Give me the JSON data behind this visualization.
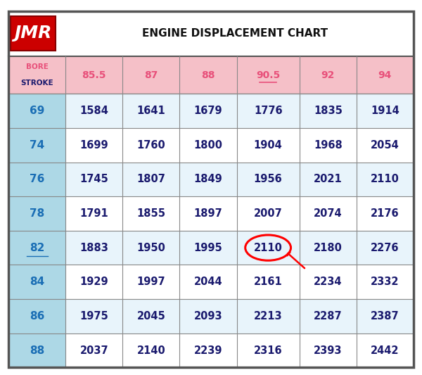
{
  "title": "ENGINE DISPLACEMENT CHART",
  "bore_values": [
    85.5,
    87,
    88,
    90.5,
    92,
    94
  ],
  "stroke_values": [
    69,
    74,
    76,
    78,
    82,
    84,
    86,
    88
  ],
  "table_data": [
    [
      1584,
      1641,
      1679,
      1776,
      1835,
      1914
    ],
    [
      1699,
      1760,
      1800,
      1904,
      1968,
      2054
    ],
    [
      1745,
      1807,
      1849,
      1956,
      2021,
      2110
    ],
    [
      1791,
      1855,
      1897,
      2007,
      2074,
      2176
    ],
    [
      1883,
      1950,
      1995,
      2110,
      2180,
      2276
    ],
    [
      1929,
      1997,
      2044,
      2161,
      2234,
      2332
    ],
    [
      1975,
      2045,
      2093,
      2213,
      2287,
      2387
    ],
    [
      2037,
      2140,
      2239,
      2316,
      2393,
      2442
    ]
  ],
  "header_bg": "#F5C0C8",
  "stroke_col_bg": "#ADD8E6",
  "row_bg_even": "#E8F4FB",
  "row_bg_odd": "#FFFFFF",
  "highlight_col": 3,
  "highlight_row": 4,
  "highlight_col_bg": "#F5C0C8",
  "cell_text_color": "#1a1a6e",
  "header_text_color": "#E8507A",
  "stroke_label_color": "#1a6eb5",
  "stroke_underline_row": 4,
  "bore_underline_col": 3,
  "border_color": "#888888",
  "fig_bg": "#FFFFFF",
  "outer_border_color": "#555555"
}
